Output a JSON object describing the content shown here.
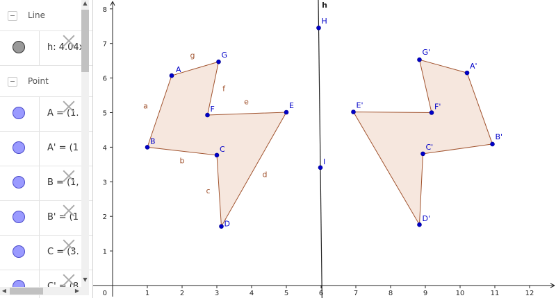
{
  "algebra": {
    "groups": [
      {
        "label": "Line",
        "items": [
          {
            "text": "h: 4.04x",
            "color": "#999999"
          }
        ]
      },
      {
        "label": "Point",
        "items": [
          {
            "text": "A = (1.",
            "color": "#9a9aff"
          },
          {
            "text": "A' = (1",
            "color": "#9a9aff"
          },
          {
            "text": "B = (1,",
            "color": "#9a9aff"
          },
          {
            "text": "B' = (1",
            "color": "#9a9aff"
          },
          {
            "text": "C = (3.",
            "color": "#9a9aff"
          },
          {
            "text": "C' = (8",
            "color": "#9a9aff"
          }
        ]
      }
    ]
  },
  "graphics": {
    "x_ticks": [
      "1",
      "2",
      "3",
      "4",
      "5",
      "6",
      "7",
      "8",
      "9",
      "10",
      "11",
      "12"
    ],
    "y_ticks": [
      "1",
      "2",
      "3",
      "4",
      "5",
      "6",
      "7",
      "8"
    ],
    "origin_label": "0",
    "line_label": "h",
    "polygon_fill": "#f5e3d8",
    "segment_color": "#a0522d",
    "point_color": "#0000c8",
    "points": [
      {
        "name": "A",
        "x": 1.7,
        "y": 6.07
      },
      {
        "name": "G",
        "x": 3.05,
        "y": 6.47
      },
      {
        "name": "F",
        "x": 2.73,
        "y": 4.93
      },
      {
        "name": "E",
        "x": 5.0,
        "y": 5.01
      },
      {
        "name": "D",
        "x": 3.13,
        "y": 1.71
      },
      {
        "name": "C",
        "x": 3.0,
        "y": 3.77
      },
      {
        "name": "B",
        "x": 1.0,
        "y": 4.0
      },
      {
        "name": "A'",
        "x": 10.2,
        "y": 6.15
      },
      {
        "name": "G'",
        "x": 8.83,
        "y": 6.53
      },
      {
        "name": "F'",
        "x": 9.18,
        "y": 5.0
      },
      {
        "name": "E'",
        "x": 6.93,
        "y": 5.02
      },
      {
        "name": "D'",
        "x": 8.83,
        "y": 1.76
      },
      {
        "name": "C'",
        "x": 8.93,
        "y": 3.81
      },
      {
        "name": "B'",
        "x": 10.93,
        "y": 4.09
      },
      {
        "name": "H",
        "x": 5.93,
        "y": 7.45
      },
      {
        "name": "I",
        "x": 5.98,
        "y": 3.41
      }
    ],
    "segments": [
      {
        "name": "a"
      },
      {
        "name": "b"
      },
      {
        "name": "c"
      },
      {
        "name": "d"
      },
      {
        "name": "e"
      },
      {
        "name": "f"
      },
      {
        "name": "g"
      }
    ]
  }
}
